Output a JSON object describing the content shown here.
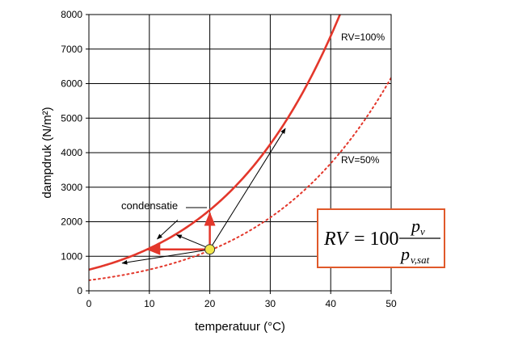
{
  "chart_data": {
    "type": "line",
    "xlabel": "temperatuur (°C)",
    "ylabel": "dampdruk (N/m²)",
    "xlim": [
      0,
      50
    ],
    "ylim": [
      0,
      8000
    ],
    "xticks": [
      "0",
      "10",
      "20",
      "30",
      "40",
      "50"
    ],
    "yticks": [
      "0",
      "1000",
      "2000",
      "3000",
      "4000",
      "5000",
      "6000",
      "7000",
      "8000"
    ],
    "grid": true,
    "x": [
      0,
      5,
      10,
      15,
      20,
      25,
      30,
      35,
      40,
      41.5
    ],
    "series": [
      {
        "name": "RV=100%",
        "style": "solid",
        "color": "#e3372b",
        "values": [
          611,
          872,
          1228,
          1705,
          2338,
          3169,
          4246,
          5628,
          7384,
          8000
        ]
      },
      {
        "name": "RV=50%",
        "style": "dotted",
        "color": "#e3372b",
        "values": [
          305,
          436,
          614,
          853,
          1169,
          1584,
          2123,
          2814,
          3692,
          4000
        ]
      }
    ],
    "series_x_50": [
      0,
      5,
      10,
      15,
      20,
      25,
      30,
      35,
      40,
      45,
      50
    ],
    "series_y_50": [
      305,
      436,
      614,
      853,
      1169,
      1584,
      2123,
      2814,
      3692,
      4798,
      6170
    ],
    "point": {
      "x": 20,
      "y": 1200,
      "color": "#f2e84a"
    },
    "annotations": {
      "rv100": "RV=100%",
      "rv50": "RV=50%",
      "condensatie": "condensatie"
    },
    "formula": {
      "lhs": "RV",
      "eq": "= 100",
      "num": "p",
      "num_sub": "v",
      "den": "p",
      "den_sub": "v,sat"
    }
  }
}
